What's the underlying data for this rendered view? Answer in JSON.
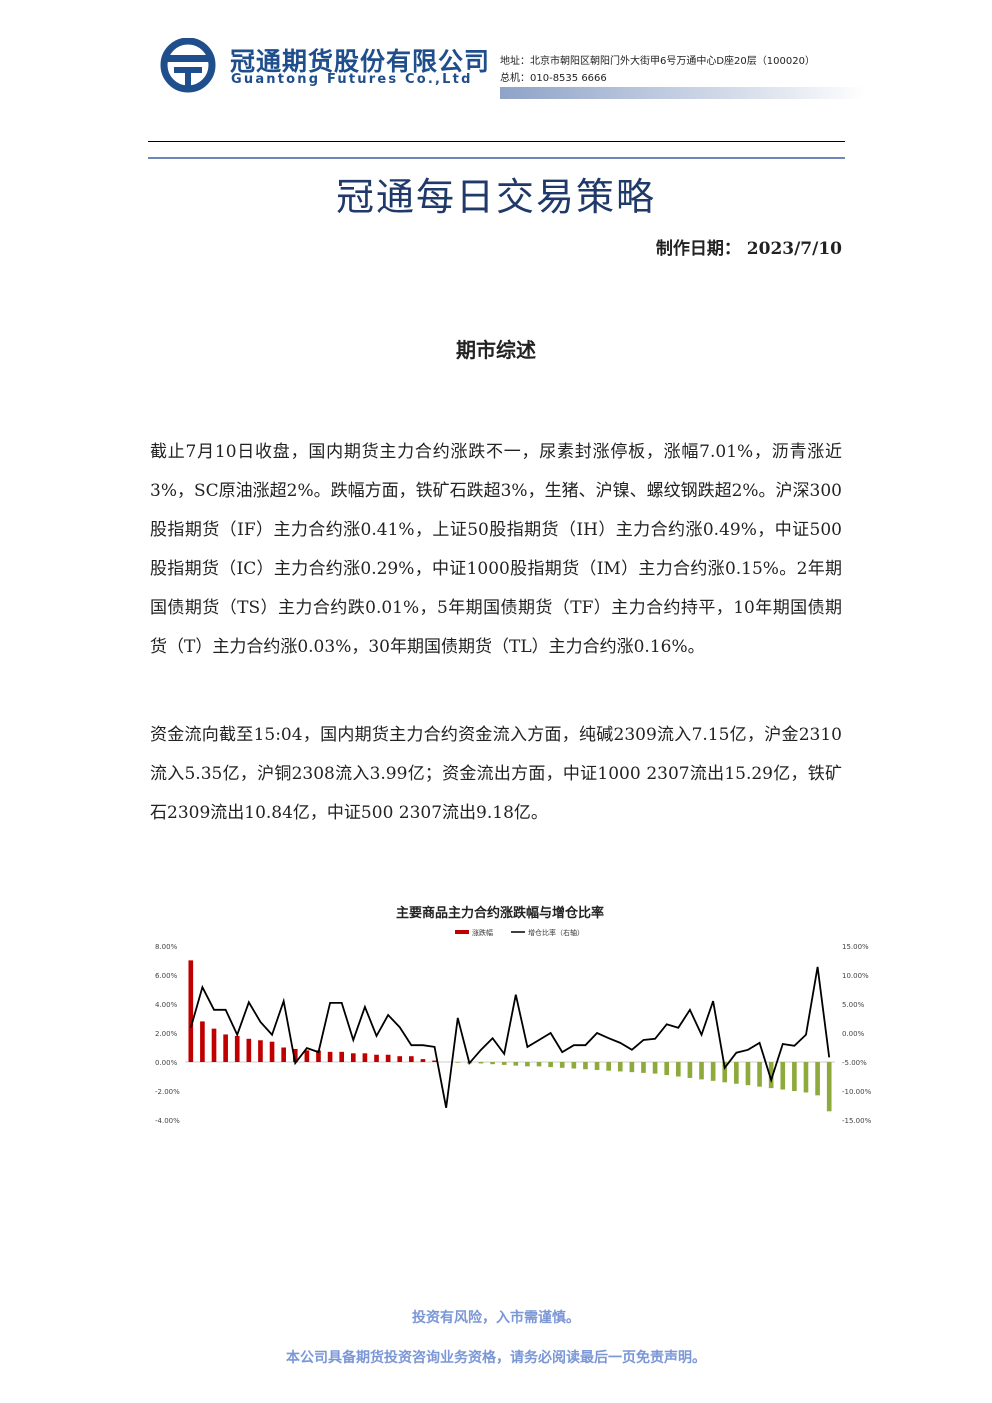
{
  "header": {
    "company_cn": "冠通期货股份有限公司",
    "company_en": "Guantong Futures Co.,Ltd",
    "address": "地址：北京市朝阳区朝阳门外大街甲6号万通中心D座20层（100020）",
    "phone": "总机：010-8535 6666"
  },
  "title": "冠通每日交易策略",
  "date_label": "制作日期：",
  "date": "2023/7/10",
  "section_title": "期市综述",
  "paragraphs": [
    "截止7月10日收盘，国内期货主力合约涨跌不一，尿素封涨停板，涨幅7.01%，沥青涨近3%，SC原油涨超2%。跌幅方面，铁矿石跌超3%，生猪、沪镍、螺纹钢跌超2%。沪深300股指期货（IF）主力合约涨0.41%，上证50股指期货（IH）主力合约涨0.49%，中证500股指期货（IC）主力合约涨0.29%，中证1000股指期货（IM）主力合约涨0.15%。2年期国债期货（TS）主力合约跌0.01%，5年期国债期货（TF）主力合约持平，10年期国债期货（T）主力合约涨0.03%，30年期国债期货（TL）主力合约涨0.16%。",
    "资金流向截至15:04，国内期货主力合约资金流入方面，纯碱2309流入7.15亿，沪金2310流入5.35亿，沪铜2308流入3.99亿；资金流出方面，中证1000 2307流出15.29亿，铁矿石2309流出10.84亿，中证500 2307流出9.18亿。"
  ],
  "chart_data": {
    "type": "bar_line",
    "title": "主要商品主力合约涨跌幅与增仓比率",
    "categories": [
      null,
      null,
      null,
      null,
      null,
      null,
      null,
      null,
      null,
      null,
      null,
      null,
      null,
      null,
      null,
      null,
      null,
      null,
      null,
      null,
      null,
      null,
      null,
      null,
      null,
      null,
      null,
      null,
      null,
      null,
      null,
      null,
      null,
      null,
      null,
      null,
      null,
      null,
      null,
      null,
      null,
      null,
      null,
      null,
      null,
      null,
      null,
      null,
      null,
      null,
      null,
      null,
      null,
      null,
      null,
      null
    ],
    "series": [
      {
        "name": "涨跌幅",
        "type": "bar",
        "color": "#c00000",
        "negative_color": "#8faa3c",
        "values": [
          7.01,
          2.8,
          2.3,
          1.9,
          1.8,
          1.6,
          1.5,
          1.4,
          1.0,
          0.9,
          0.8,
          0.8,
          0.7,
          0.7,
          0.6,
          0.6,
          0.5,
          0.5,
          0.4,
          0.4,
          0.2,
          0.1,
          0,
          -0.05,
          -0.1,
          -0.1,
          -0.15,
          -0.2,
          -0.25,
          -0.3,
          -0.3,
          -0.35,
          -0.4,
          -0.45,
          -0.5,
          -0.55,
          -0.6,
          -0.65,
          -0.7,
          -0.75,
          -0.8,
          -0.9,
          -1.0,
          -1.1,
          -1.2,
          -1.3,
          -1.4,
          -1.5,
          -1.6,
          -1.7,
          -1.8,
          -1.9,
          -2.0,
          -2.1,
          -2.3,
          -3.4
        ]
      },
      {
        "name": "增仓比率（右轴）",
        "type": "line",
        "axis": "y2",
        "color": "#000000",
        "values": [
          0.9,
          7.9,
          4.0,
          4.0,
          -0.3,
          5.3,
          1.9,
          -0.3,
          5.5,
          -5.2,
          -2.6,
          -3.3,
          5.2,
          5.2,
          -1.2,
          4.5,
          -0.5,
          3.1,
          1.0,
          -2.1,
          -2.1,
          -2.4,
          -12.9,
          2.6,
          -5.2,
          -2.9,
          -0.9,
          -3.6,
          6.6,
          -2.4,
          -1.2,
          0.0,
          -3.3,
          -2.1,
          -2.1,
          0.0,
          -0.9,
          -1.7,
          -2.9,
          -1.2,
          -1.0,
          1.5,
          0.9,
          4.0,
          -0.3,
          5.5,
          -6.0,
          -3.4,
          -2.9,
          -1.7,
          -8.1,
          -1.9,
          -2.2,
          -0.3,
          11.4,
          -4.2
        ]
      }
    ],
    "ylim": [
      -4,
      8
    ],
    "yticks": [
      {
        "value": 8,
        "label": "8.00%"
      },
      {
        "value": 6,
        "label": "6.00%"
      },
      {
        "value": 4,
        "label": "4.00%"
      },
      {
        "value": 2,
        "label": "2.00%"
      },
      {
        "value": 0,
        "label": "0.00%"
      },
      {
        "value": -2,
        "label": "-2.00%"
      },
      {
        "value": -4,
        "label": "-4.00%"
      }
    ],
    "y2lim": [
      -15,
      15
    ],
    "y2ticks": [
      {
        "value": 15,
        "label": "15.00%"
      },
      {
        "value": 10,
        "label": "10.00%"
      },
      {
        "value": 5,
        "label": "5.00%"
      },
      {
        "value": 0,
        "label": "0.00%"
      },
      {
        "value": -5,
        "label": "-5.00%"
      },
      {
        "value": -10,
        "label": "-10.00%"
      },
      {
        "value": -15,
        "label": "-15.00%"
      }
    ],
    "grid": false,
    "legend": "top"
  },
  "footer": [
    "投资有风险，入市需谨慎。",
    "本公司具备期货投资咨询业务资格，请务必阅读最后一页免责声明。"
  ]
}
